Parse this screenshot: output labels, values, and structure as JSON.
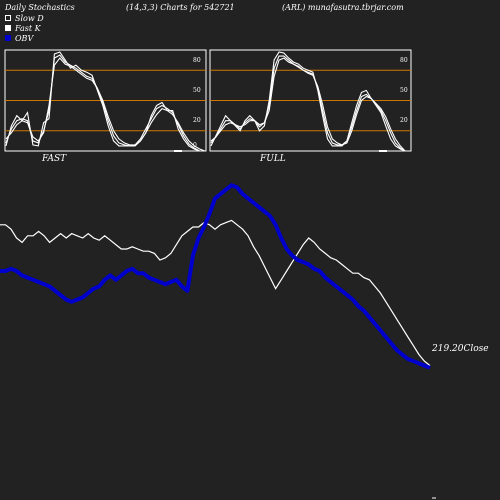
{
  "header": {
    "title": "Daily Stochastics",
    "params": "(14,3,3) Charts for 542721",
    "symbol": "(ARL) munafasutra.tbrjar.com"
  },
  "legend": [
    {
      "label": "Slow  D",
      "color": "#ffffff",
      "style": "outline"
    },
    {
      "label": "Fast K",
      "color": "#ffffff",
      "style": "filled"
    },
    {
      "label": "OBV",
      "color": "#0000cc",
      "style": "filled"
    }
  ],
  "colors": {
    "background": "#222222",
    "panel_border": "#ffffff",
    "level_lines": "#cc7700",
    "price_line": "#ffffff",
    "obv_line": "#0000cc"
  },
  "close_label": "219.20Close",
  "chart_data": [
    {
      "type": "line",
      "title": "FAST",
      "ylim": [
        0,
        100
      ],
      "levels": [
        20,
        50,
        80
      ],
      "tick_labels": [
        "80",
        "50",
        "20",
        "0"
      ],
      "series": [
        {
          "name": "",
          "values": [
            5,
            25,
            35,
            30,
            38,
            6,
            5,
            28,
            32,
            96,
            98,
            90,
            82,
            85,
            80,
            78,
            75,
            60,
            45,
            25,
            10,
            5,
            5,
            5,
            5,
            10,
            18,
            35,
            45,
            48,
            40,
            40,
            22,
            12,
            5,
            2,
            0,
            0
          ]
        },
        {
          "name": "",
          "values": [
            8,
            22,
            30,
            32,
            30,
            10,
            8,
            20,
            40,
            92,
            95,
            88,
            85,
            82,
            78,
            74,
            72,
            62,
            48,
            30,
            15,
            8,
            6,
            5,
            6,
            12,
            22,
            32,
            42,
            45,
            42,
            38,
            26,
            15,
            7,
            3,
            0,
            0
          ]
        },
        {
          "name": "",
          "values": [
            12,
            18,
            26,
            30,
            28,
            14,
            10,
            18,
            45,
            85,
            92,
            86,
            84,
            80,
            76,
            72,
            70,
            62,
            50,
            34,
            20,
            12,
            8,
            6,
            6,
            10,
            18,
            28,
            36,
            42,
            40,
            36,
            28,
            18,
            10,
            5,
            2,
            0
          ]
        }
      ]
    },
    {
      "type": "line",
      "title": "FULL",
      "ylim": [
        0,
        100
      ],
      "levels": [
        20,
        50,
        80
      ],
      "tick_labels": [
        "80",
        "50",
        "20"
      ],
      "series": [
        {
          "name": "",
          "values": [
            5,
            15,
            25,
            35,
            30,
            25,
            20,
            30,
            35,
            30,
            20,
            25,
            50,
            90,
            98,
            97,
            92,
            88,
            86,
            82,
            80,
            78,
            60,
            35,
            12,
            5,
            5,
            5,
            10,
            28,
            45,
            58,
            60,
            52,
            45,
            38,
            25,
            12,
            5,
            2,
            0,
            0
          ]
        },
        {
          "name": "",
          "values": [
            8,
            14,
            22,
            30,
            30,
            26,
            22,
            28,
            32,
            30,
            24,
            28,
            45,
            82,
            94,
            94,
            90,
            86,
            84,
            80,
            78,
            76,
            62,
            40,
            18,
            8,
            6,
            6,
            10,
            24,
            40,
            54,
            56,
            52,
            46,
            40,
            30,
            18,
            8,
            3,
            0,
            0
          ]
        },
        {
          "name": "",
          "values": [
            10,
            14,
            20,
            26,
            28,
            26,
            24,
            26,
            30,
            30,
            26,
            28,
            40,
            74,
            90,
            92,
            88,
            86,
            83,
            80,
            77,
            75,
            64,
            46,
            24,
            12,
            8,
            6,
            8,
            20,
            36,
            50,
            54,
            52,
            47,
            42,
            34,
            22,
            12,
            5,
            0,
            0
          ]
        }
      ]
    },
    {
      "type": "line",
      "title": "",
      "series": [
        {
          "name": "",
          "values": [
            0.66,
            0.66,
            0.64,
            0.6,
            0.58,
            0.61,
            0.61,
            0.63,
            0.61,
            0.58,
            0.6,
            0.62,
            0.6,
            0.62,
            0.61,
            0.6,
            0.62,
            0.6,
            0.59,
            0.61,
            0.59,
            0.57,
            0.55,
            0.55,
            0.56,
            0.55,
            0.54,
            0.54,
            0.53,
            0.5,
            0.51,
            0.53,
            0.57,
            0.61,
            0.63,
            0.65,
            0.65,
            0.67,
            0.66,
            0.64,
            0.66,
            0.67,
            0.68,
            0.66,
            0.64,
            0.61,
            0.56,
            0.52,
            0.47,
            0.42,
            0.37,
            0.41,
            0.45,
            0.49,
            0.53,
            0.57,
            0.6,
            0.58,
            0.55,
            0.53,
            0.51,
            0.5,
            0.48,
            0.46,
            0.44,
            0.44,
            0.42,
            0.41,
            0.38,
            0.35,
            0.31,
            0.27,
            0.23,
            0.19,
            0.15,
            0.11,
            0.07,
            0.04,
            0.02
          ]
        },
        {
          "name": "",
          "values": [
            0.45,
            0.45,
            0.46,
            0.45,
            0.43,
            0.42,
            0.41,
            0.4,
            0.39,
            0.38,
            0.36,
            0.34,
            0.32,
            0.31,
            0.32,
            0.33,
            0.35,
            0.37,
            0.38,
            0.41,
            0.43,
            0.41,
            0.43,
            0.45,
            0.46,
            0.44,
            0.44,
            0.42,
            0.41,
            0.4,
            0.39,
            0.4,
            0.41,
            0.38,
            0.36,
            0.52,
            0.6,
            0.65,
            0.71,
            0.78,
            0.8,
            0.82,
            0.84,
            0.83,
            0.8,
            0.78,
            0.76,
            0.74,
            0.72,
            0.7,
            0.66,
            0.6,
            0.55,
            0.52,
            0.5,
            0.49,
            0.48,
            0.46,
            0.45,
            0.42,
            0.4,
            0.38,
            0.36,
            0.34,
            0.32,
            0.29,
            0.27,
            0.24,
            0.21,
            0.18,
            0.15,
            0.12,
            0.09,
            0.07,
            0.05,
            0.04,
            0.03,
            0.02,
            0.01
          ]
        }
      ]
    }
  ]
}
